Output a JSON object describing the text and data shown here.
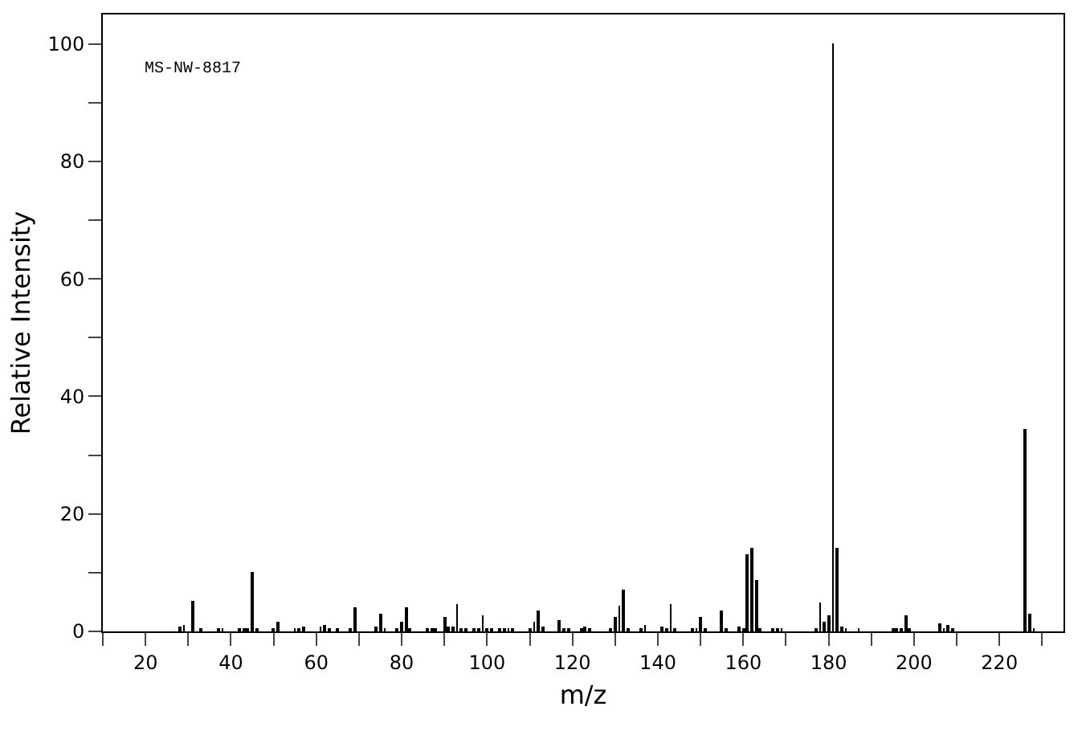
{
  "chart_data": {
    "type": "bar",
    "xlabel": "m/z",
    "ylabel": "Relative Intensity",
    "annotations": [
      "MS-NW-8817"
    ],
    "x": [
      28,
      29,
      31,
      33,
      37,
      38,
      42,
      43,
      44,
      45,
      46,
      50,
      51,
      55,
      56,
      57,
      61,
      62,
      63,
      65,
      68,
      69,
      74,
      75,
      76,
      79,
      80,
      81,
      82,
      86,
      87,
      88,
      90,
      91,
      92,
      93,
      94,
      95,
      97,
      98,
      99,
      100,
      101,
      103,
      104,
      105,
      106,
      110,
      111,
      112,
      113,
      117,
      118,
      119,
      122,
      123,
      124,
      129,
      130,
      131,
      132,
      133,
      136,
      137,
      141,
      142,
      143,
      144,
      148,
      149,
      150,
      151,
      155,
      156,
      159,
      160,
      161,
      162,
      163,
      164,
      167,
      168,
      169,
      177,
      178,
      179,
      180,
      181,
      182,
      183,
      184,
      187,
      195,
      196,
      197,
      198,
      199,
      206,
      207,
      208,
      209,
      226,
      227,
      228
    ],
    "values": [
      0.7,
      1.1,
      5.3,
      0.3,
      0.3,
      0.3,
      0.3,
      0.3,
      0.5,
      10.0,
      0.3,
      0.3,
      1.6,
      0.3,
      0.5,
      0.8,
      0.8,
      1.1,
      0.5,
      0.3,
      0.5,
      4.1,
      0.8,
      3.0,
      0.3,
      0.5,
      1.6,
      4.1,
      0.3,
      0.5,
      0.3,
      0.3,
      2.5,
      0.8,
      0.8,
      4.7,
      0.3,
      0.3,
      0.3,
      0.5,
      2.7,
      0.3,
      0.5,
      0.3,
      0.3,
      0.5,
      0.3,
      0.3,
      1.6,
      3.6,
      0.8,
      1.9,
      0.3,
      0.5,
      0.3,
      0.8,
      0.3,
      0.5,
      2.5,
      4.4,
      7.1,
      0.5,
      0.3,
      1.1,
      0.8,
      0.3,
      4.7,
      0.5,
      0.3,
      0.3,
      2.5,
      0.5,
      3.6,
      0.3,
      0.8,
      0.3,
      13.2,
      14.2,
      8.8,
      0.5,
      0.3,
      0.3,
      0.3,
      0.3,
      4.9,
      1.6,
      2.7,
      100,
      14.2,
      0.8,
      0.3,
      0.3,
      0.5,
      0.3,
      0.3,
      2.7,
      0.3,
      1.4,
      0.5,
      1.1,
      0.3,
      34.5,
      3.0,
      0.3
    ],
    "color": "#000000",
    "xlim": [
      10,
      235
    ],
    "ylim": [
      0,
      105
    ],
    "xticks": [
      {
        "value": 10,
        "label": null
      },
      20,
      {
        "value": 30,
        "label": null
      },
      40,
      {
        "value": 50,
        "label": null
      },
      60,
      {
        "value": 70,
        "label": null
      },
      80,
      {
        "value": 90,
        "label": null
      },
      100,
      {
        "value": 110,
        "label": null
      },
      120,
      {
        "value": 130,
        "label": null
      },
      140,
      {
        "value": 150,
        "label": null
      },
      160,
      {
        "value": 170,
        "label": null
      },
      180,
      {
        "value": 190,
        "label": null
      },
      200,
      {
        "value": 210,
        "label": null
      },
      220,
      {
        "value": 230,
        "label": null
      }
    ],
    "yticks": [
      0,
      {
        "value": 10,
        "label": null
      },
      20,
      {
        "value": 30,
        "label": null
      },
      40,
      {
        "value": 50,
        "label": null
      },
      60,
      {
        "value": 70,
        "label": null
      },
      80,
      {
        "value": 90,
        "label": null
      },
      100
    ],
    "title": null
  }
}
